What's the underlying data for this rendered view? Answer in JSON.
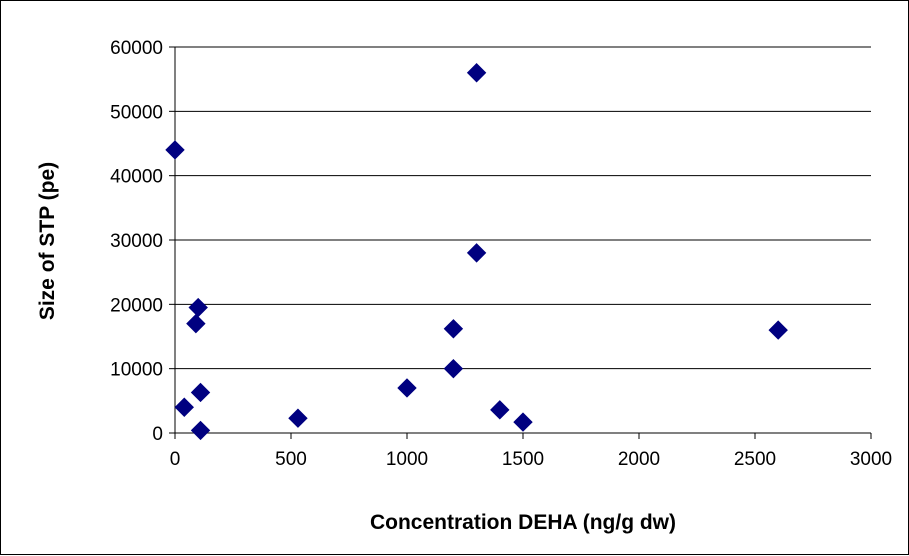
{
  "chart_data": {
    "type": "scatter",
    "title": "",
    "xlabel": "Concentration DEHA (ng/g dw)",
    "ylabel": "Size of STP (pe)",
    "xlim": [
      0,
      3000
    ],
    "ylim": [
      0,
      60000
    ],
    "x_ticks": [
      "0",
      "500",
      "1000",
      "1500",
      "2000",
      "2500",
      "3000"
    ],
    "y_ticks": [
      "0",
      "10000",
      "20000",
      "30000",
      "40000",
      "50000",
      "60000"
    ],
    "grid": "horizontal",
    "legend": "none",
    "marker": "diamond",
    "marker_color": "#000080",
    "points": [
      {
        "x": 0,
        "y": 44000
      },
      {
        "x": 40,
        "y": 4000
      },
      {
        "x": 90,
        "y": 17000
      },
      {
        "x": 100,
        "y": 19500
      },
      {
        "x": 110,
        "y": 6300
      },
      {
        "x": 110,
        "y": 400
      },
      {
        "x": 530,
        "y": 2300
      },
      {
        "x": 1000,
        "y": 7000
      },
      {
        "x": 1200,
        "y": 16200
      },
      {
        "x": 1200,
        "y": 10000
      },
      {
        "x": 1300,
        "y": 56000
      },
      {
        "x": 1300,
        "y": 28000
      },
      {
        "x": 1400,
        "y": 3600
      },
      {
        "x": 1500,
        "y": 1700
      },
      {
        "x": 2600,
        "y": 16000
      }
    ]
  }
}
